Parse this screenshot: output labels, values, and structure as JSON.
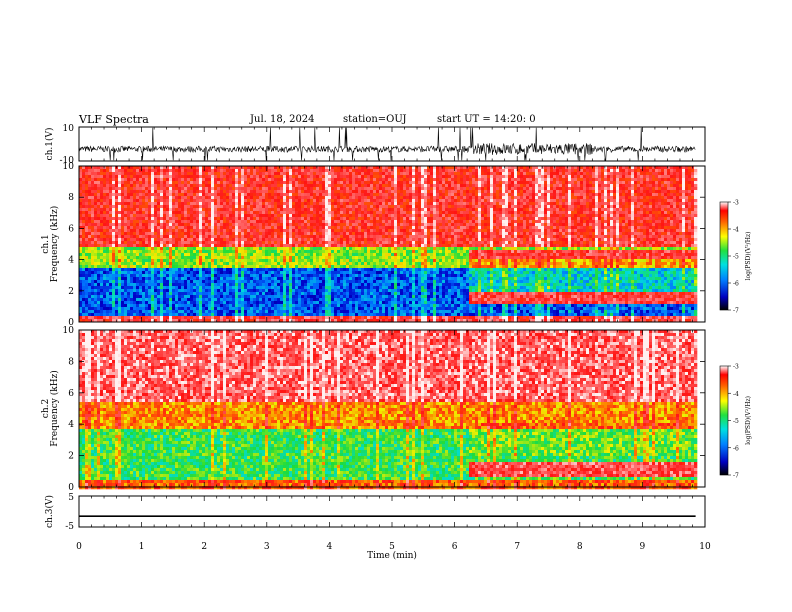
{
  "header": {
    "title": "VLF Spectra",
    "date": "Jul. 18, 2024",
    "station": "station=OUJ",
    "start": "start UT =  14:20: 0"
  },
  "chart_data": [
    {
      "type": "line",
      "title": "",
      "ylabel": "ch.1(V)",
      "xlabel": "",
      "xlim": [
        0,
        10
      ],
      "ylim": [
        -10,
        10
      ],
      "yticks": [
        "10",
        "-10"
      ],
      "series": [
        {
          "values": "broadband waveform, mostly near -3 V with dense spikes, strongest between 6.3 and 8.2 min"
        }
      ]
    },
    {
      "type": "heatmap",
      "ylabel": "ch.1 Frequency (kHz)",
      "xlim": [
        0,
        9.85
      ],
      "ylim": [
        0,
        10
      ],
      "yticks": [
        "0",
        "2",
        "4",
        "6",
        "8",
        "10"
      ],
      "colorbar": {
        "label": "log(PSD)(V²/Hz)",
        "range": [
          -7,
          -3
        ],
        "ticks": [
          "-3",
          "-4",
          "-5",
          "-6",
          "-7"
        ]
      },
      "bands_kHz_logPSD": [
        {
          "from": 0,
          "to": 0.5,
          "value": -3.4
        },
        {
          "from": 0.5,
          "to": 3.5,
          "value": -6.3
        },
        {
          "from": 3.5,
          "to": 5.0,
          "value": -4.9
        },
        {
          "from": 5.0,
          "to": 10,
          "value": -3.5
        }
      ],
      "events": [
        {
          "from_min": 6.2,
          "to_min": 9.85,
          "note": "strong structured bands 1-2 kHz and near 4.5 kHz"
        }
      ]
    },
    {
      "type": "heatmap",
      "ylabel": "ch.2 Frequency (kHz)",
      "xlim": [
        0,
        9.85
      ],
      "ylim": [
        0,
        10
      ],
      "yticks": [
        "0",
        "2",
        "4",
        "6",
        "8",
        "10"
      ],
      "colorbar": {
        "label": "log(PSD)(V²/Hz)",
        "range": [
          -7,
          -3
        ],
        "ticks": [
          "-3",
          "-4",
          "-5",
          "-6",
          "-7"
        ]
      },
      "bands_kHz_logPSD": [
        {
          "from": 0,
          "to": 0.5,
          "value": -4.0
        },
        {
          "from": 0.5,
          "to": 3.8,
          "value": -5.2
        },
        {
          "from": 3.8,
          "to": 5.5,
          "value": -4.2
        },
        {
          "from": 5.5,
          "to": 10,
          "value": -3.2
        }
      ],
      "events": [
        {
          "from_min": 6.2,
          "to_min": 9.85,
          "note": "strong structured bands near 1 kHz"
        }
      ]
    },
    {
      "type": "line",
      "ylabel": "ch.3(V)",
      "xlabel": "Time (min)",
      "xlim": [
        0,
        10
      ],
      "ylim": [
        -5,
        5
      ],
      "yticks": [
        "5",
        "-5"
      ],
      "xticks": [
        "0",
        "1",
        "2",
        "3",
        "4",
        "5",
        "6",
        "7",
        "8",
        "9",
        "10"
      ],
      "series": [
        {
          "x": [
            0,
            9.85
          ],
          "y": [
            -1.5,
            -1.5
          ]
        }
      ]
    }
  ]
}
